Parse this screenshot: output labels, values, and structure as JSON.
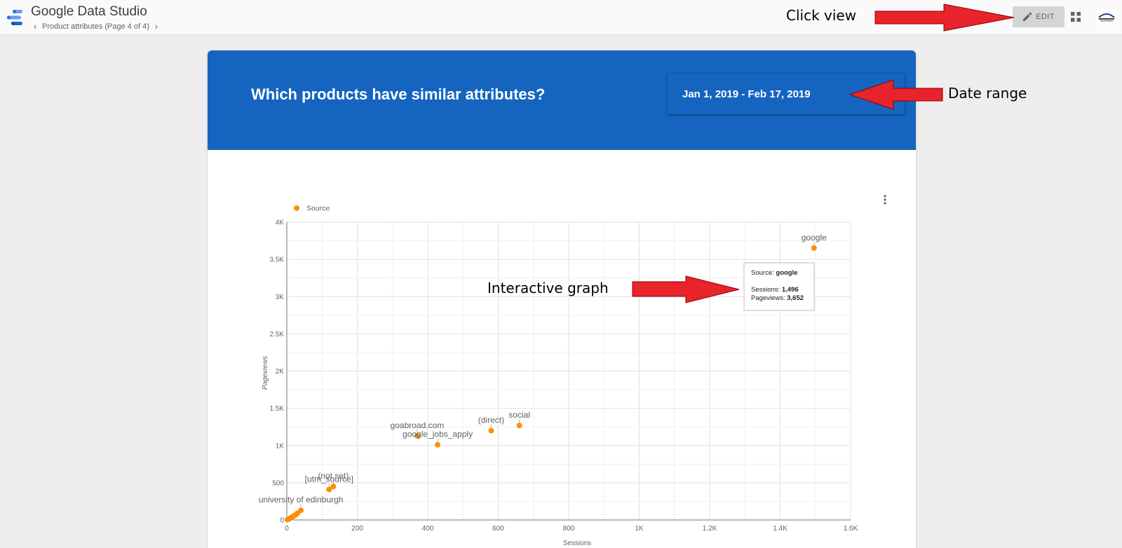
{
  "app": {
    "title": "Google Data Studio",
    "page_label": "Product attributes (Page 4 of 4)"
  },
  "toolbar": {
    "edit_label": "EDIT"
  },
  "report": {
    "title": "Which products have similar attributes?",
    "date_range": "Jan 1, 2019 - Feb 17, 2019"
  },
  "annotations": {
    "click_view": "Click view",
    "date_range": "Date range",
    "interactive_graph": "Interactive graph"
  },
  "colors": {
    "header_blue": "#1565c0",
    "point_orange": "#ff8f00",
    "arrow_red": "#e8232b"
  },
  "chart_data": {
    "type": "scatter",
    "xlabel": "Sessions",
    "ylabel": "Pageviews",
    "xlim": [
      0,
      1600
    ],
    "ylim": [
      0,
      4000
    ],
    "x_ticks": [
      "0",
      "200",
      "400",
      "600",
      "800",
      "1K",
      "1.2K",
      "1.4K",
      "1.6K"
    ],
    "y_ticks": [
      "0",
      "500",
      "1K",
      "1.5K",
      "2K",
      "2.5K",
      "3K",
      "3.5K",
      "4K"
    ],
    "legend": {
      "label": "Source",
      "position": "top-left"
    },
    "grid": true,
    "series": [
      {
        "name": "Source",
        "points": [
          {
            "label": "google",
            "x": 1496,
            "y": 3652
          },
          {
            "label": "social",
            "x": 660,
            "y": 1270
          },
          {
            "label": "(direct)",
            "x": 580,
            "y": 1200
          },
          {
            "label": "goabroad.com",
            "x": 370,
            "y": 1130
          },
          {
            "label": "google_jobs_apply",
            "x": 428,
            "y": 1010
          },
          {
            "label": "(not set)",
            "x": 132,
            "y": 450
          },
          {
            "label": "[utm_source]",
            "x": 120,
            "y": 410
          },
          {
            "label": "university of edinburgh",
            "x": 40,
            "y": 130
          },
          {
            "label": "",
            "x": 30,
            "y": 90
          },
          {
            "label": "",
            "x": 25,
            "y": 70
          },
          {
            "label": "",
            "x": 20,
            "y": 55
          },
          {
            "label": "",
            "x": 15,
            "y": 40
          },
          {
            "label": "",
            "x": 10,
            "y": 25
          },
          {
            "label": "",
            "x": 5,
            "y": 10
          },
          {
            "label": "",
            "x": 2,
            "y": 5
          }
        ]
      }
    ],
    "tooltip": {
      "source_key": "Source: ",
      "source_value": "google",
      "sessions_key": "Sessions: ",
      "sessions_value": "1,496",
      "pageviews_key": "Pageviews: ",
      "pageviews_value": "3,652"
    }
  }
}
